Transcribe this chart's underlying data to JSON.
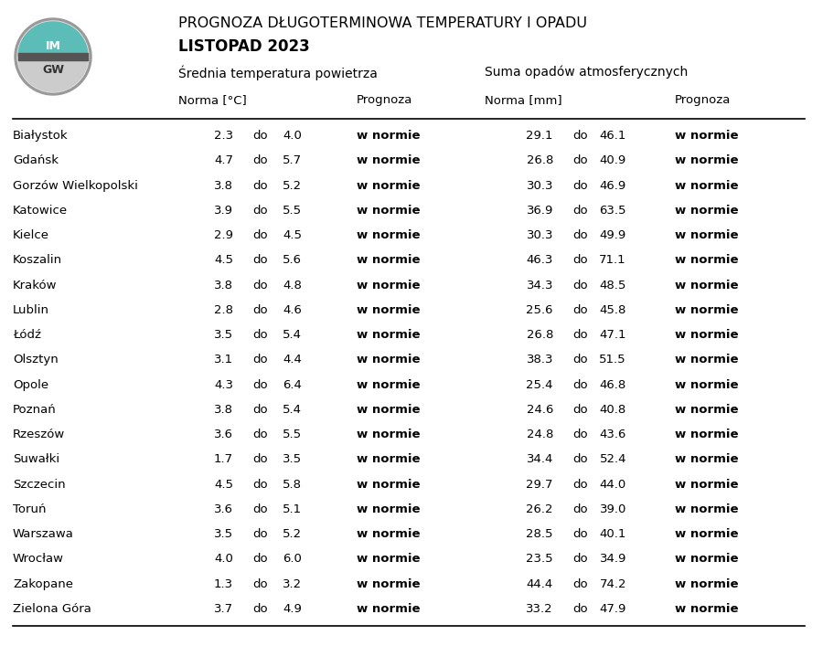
{
  "title_line1": "PROGNOZA DŁUGOTERMINOWA TEMPERATURY I OPADU",
  "title_line2": "LISTOPAD 2023",
  "header_temp": "Średniatemperatura powietrza",
  "header_precip": "Suma opadów atmosferycznych",
  "col_norma_temp": "Norma [°C]",
  "col_prognoza": "Prognoza",
  "col_norma_precip": "Norma [mm]",
  "col_prognoza2": "Prognoza",
  "cities": [
    "Białystok",
    "Gdańsk",
    "Gorzów Wielkopolski",
    "Katowice",
    "Kielce",
    "Koszalin",
    "Kraków",
    "Lublin",
    "Łódź",
    "Olsztyn",
    "Opole",
    "Poznań",
    "Rzeszów",
    "Suwałki",
    "Szczecin",
    "Toruń",
    "Warszawa",
    "Wrocław",
    "Zakopane",
    "Zielona Góra"
  ],
  "temp_min": [
    2.3,
    4.7,
    3.8,
    3.9,
    2.9,
    4.5,
    3.8,
    2.8,
    3.5,
    3.1,
    4.3,
    3.8,
    3.6,
    1.7,
    4.5,
    3.6,
    3.5,
    4.0,
    1.3,
    3.7
  ],
  "temp_max": [
    4.0,
    5.7,
    5.2,
    5.5,
    4.5,
    5.6,
    4.8,
    4.6,
    5.4,
    4.4,
    6.4,
    5.4,
    5.5,
    3.5,
    5.8,
    5.1,
    5.2,
    6.0,
    3.2,
    4.9
  ],
  "temp_prognoza": [
    "w normie",
    "w normie",
    "w normie",
    "w normie",
    "w normie",
    "w normie",
    "w normie",
    "w normie",
    "w normie",
    "w normie",
    "w normie",
    "w normie",
    "w normie",
    "w normie",
    "w normie",
    "w normie",
    "w normie",
    "w normie",
    "w normie",
    "w normie"
  ],
  "precip_min": [
    29.1,
    26.8,
    30.3,
    36.9,
    30.3,
    46.3,
    34.3,
    25.6,
    26.8,
    38.3,
    25.4,
    24.6,
    24.8,
    34.4,
    29.7,
    26.2,
    28.5,
    23.5,
    44.4,
    33.2
  ],
  "precip_max": [
    46.1,
    40.9,
    46.9,
    63.5,
    49.9,
    71.1,
    48.5,
    45.8,
    47.1,
    51.5,
    46.8,
    40.8,
    43.6,
    52.4,
    44.0,
    39.0,
    40.1,
    34.9,
    74.2,
    47.9
  ],
  "precip_prognoza": [
    "w normie",
    "w normie",
    "w normie",
    "w normie",
    "w normie",
    "w normie",
    "w normie",
    "w normie",
    "w normie",
    "w normie",
    "w normie",
    "w normie",
    "w normie",
    "w normie",
    "w normie",
    "w normie",
    "w normie",
    "w normie",
    "w normie",
    "w normie"
  ],
  "bg_color": "#ffffff",
  "text_color": "#000000",
  "line_color": "#000000"
}
